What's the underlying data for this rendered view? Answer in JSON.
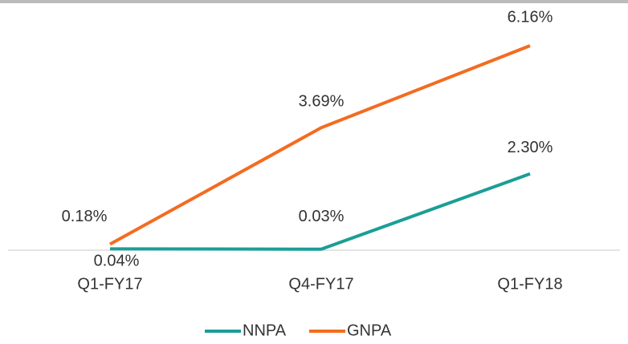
{
  "chart_data": {
    "type": "line",
    "categories": [
      "Q1-FY17",
      "Q4-FY17",
      "Q1-FY18"
    ],
    "series": [
      {
        "name": "NNPA",
        "color": "#1a9e96",
        "values": [
          0.04,
          0.03,
          2.3
        ],
        "value_labels": [
          "0.04%",
          "0.03%",
          "2.30%"
        ]
      },
      {
        "name": "GNPA",
        "color": "#f36c21",
        "values": [
          0.18,
          3.69,
          6.16
        ],
        "value_labels": [
          "0.18%",
          "3.69%",
          "6.16%"
        ]
      }
    ]
  }
}
